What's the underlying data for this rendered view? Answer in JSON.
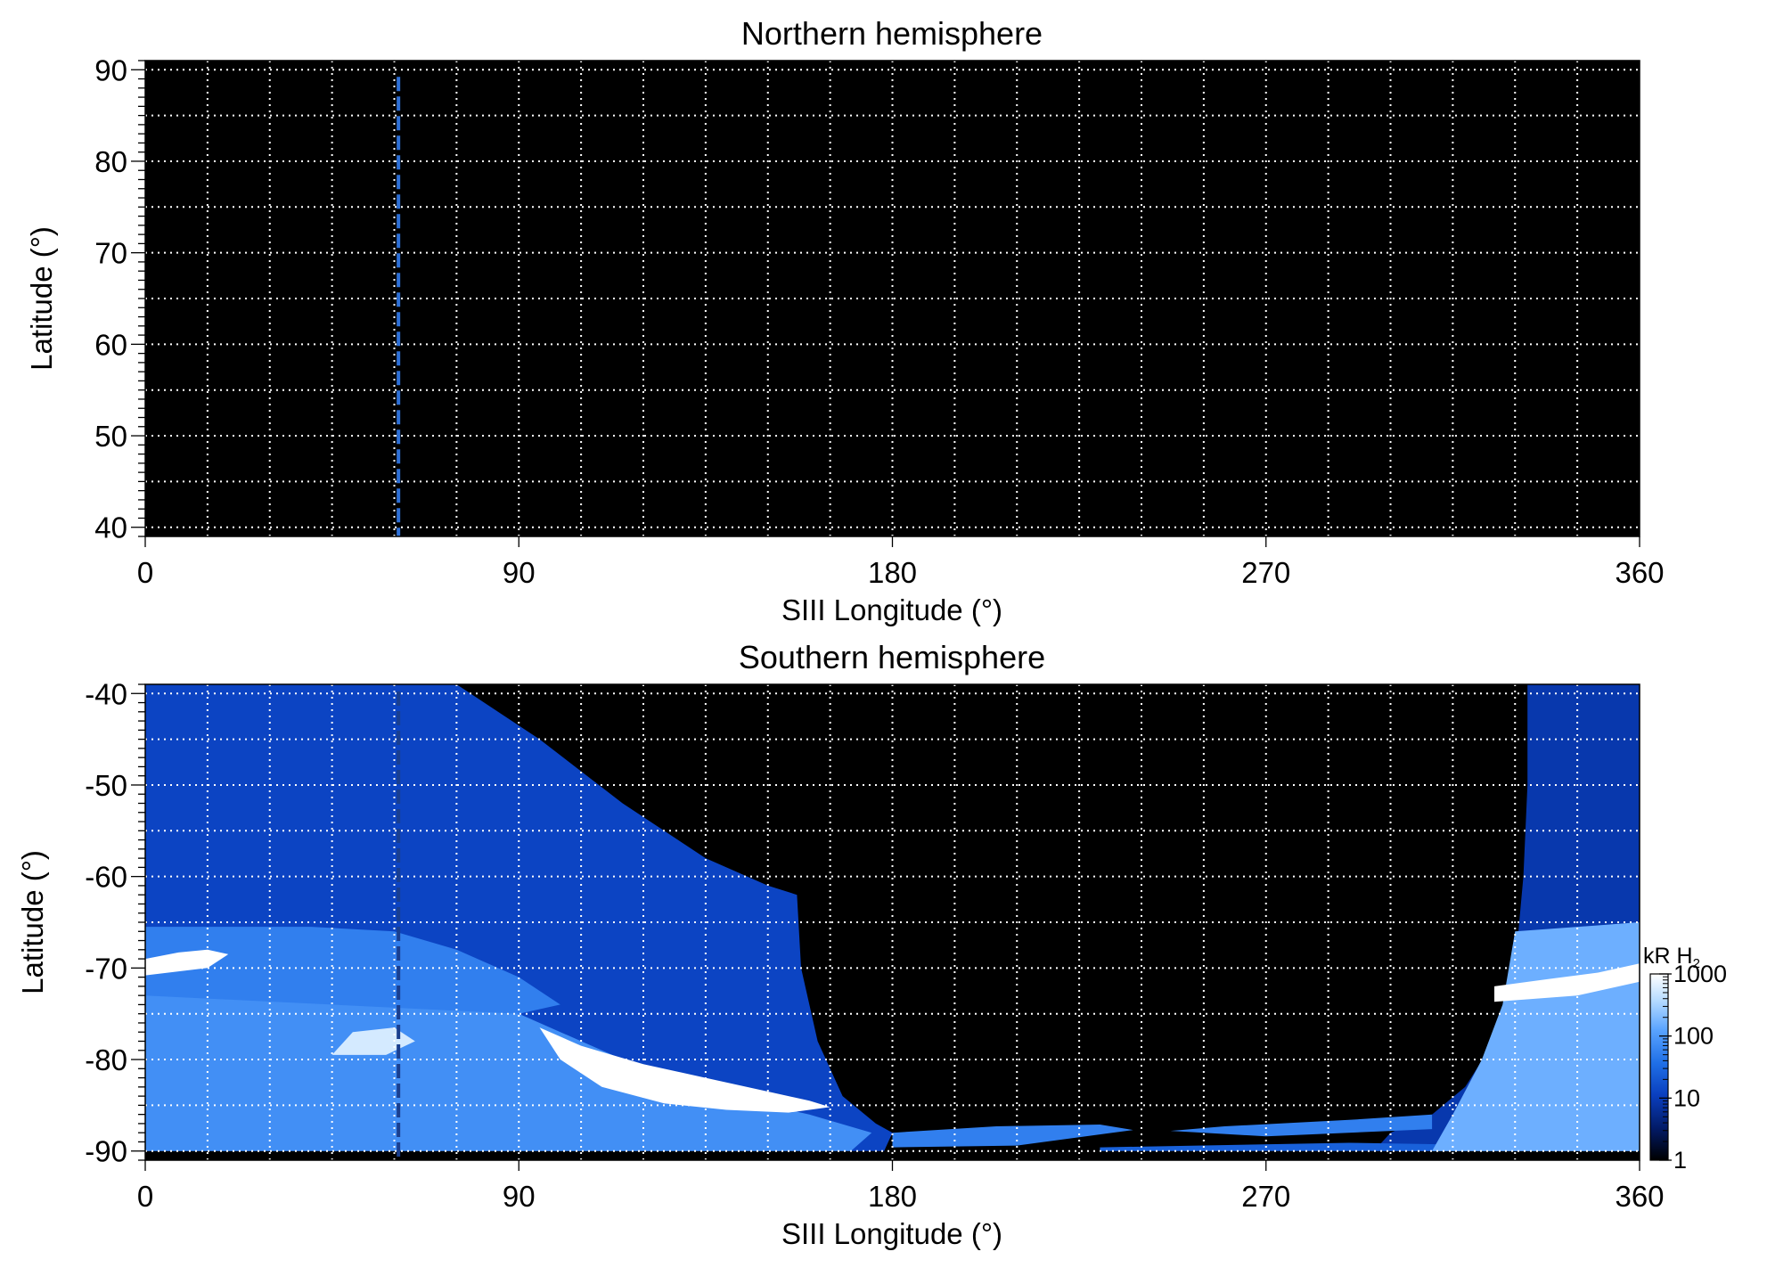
{
  "chart_data": [
    {
      "type": "heatmap",
      "title": "Northern hemisphere",
      "xlabel": "SIII Longitude (°)",
      "ylabel": "Latitude (°)",
      "xlim": [
        0,
        360
      ],
      "ylim": [
        39,
        91
      ],
      "xticks": [
        0,
        90,
        180,
        270,
        360
      ],
      "xtick_labels": [
        "0",
        "90",
        "180",
        "270",
        "360"
      ],
      "yticks": [
        40,
        50,
        60,
        70,
        80,
        90
      ],
      "ytick_labels": [
        "40",
        "50",
        "60",
        "70",
        "80",
        "90"
      ],
      "grid": true,
      "grid_x_step": 15,
      "grid_y_step": 5,
      "background_color": "#000000",
      "grid_color": "#ffffff",
      "marker_line": {
        "longitude": 61,
        "color": "#2d6fd6",
        "style": "dashed"
      },
      "emission": []
    },
    {
      "type": "heatmap",
      "title": "Southern hemisphere",
      "xlabel": "SIII Longitude (°)",
      "ylabel": "Latitude (°)",
      "xlim": [
        0,
        360
      ],
      "ylim": [
        -91,
        -39
      ],
      "xticks": [
        0,
        90,
        180,
        270,
        360
      ],
      "xtick_labels": [
        "0",
        "90",
        "180",
        "270",
        "360"
      ],
      "yticks": [
        -40,
        -50,
        -60,
        -70,
        -80,
        -90
      ],
      "ytick_labels": [
        "-40",
        "-50",
        "-60",
        "-70",
        "-80",
        "-90"
      ],
      "grid": true,
      "grid_x_step": 15,
      "grid_y_step": 5,
      "background_color": "#000000",
      "grid_color": "#ffffff",
      "marker_line": {
        "longitude": 61,
        "color": "#1a3f8f",
        "style": "dashed"
      },
      "emission": [
        {
          "region": "diffuse",
          "level": 0.35,
          "polygon": [
            [
              0,
              -39
            ],
            [
              75,
              -39
            ],
            [
              95,
              -45
            ],
            [
              115,
              -52
            ],
            [
              135,
              -58
            ],
            [
              150,
              -61
            ],
            [
              157,
              -62
            ],
            [
              158,
              -70
            ],
            [
              162,
              -78
            ],
            [
              168,
              -84
            ],
            [
              176,
              -87
            ],
            [
              180,
              -88
            ],
            [
              178,
              -90
            ],
            [
              0,
              -90
            ]
          ]
        },
        {
          "region": "diffuse",
          "level": 0.3,
          "polygon": [
            [
              333,
              -39
            ],
            [
              360,
              -39
            ],
            [
              360,
              -90
            ],
            [
              296,
              -90
            ],
            [
              300,
              -88
            ],
            [
              310,
              -86
            ],
            [
              318,
              -83
            ],
            [
              325,
              -78
            ],
            [
              330,
              -70
            ],
            [
              332,
              -60
            ],
            [
              333,
              -50
            ]
          ]
        },
        {
          "region": "floor",
          "level": 0.55,
          "polygon": [
            [
              180,
              -88
            ],
            [
              205,
              -87.3
            ],
            [
              230,
              -87.1
            ],
            [
              238,
              -87.7
            ],
            [
              210,
              -89.4
            ],
            [
              180,
              -89.6
            ]
          ]
        },
        {
          "region": "floor",
          "level": 0.55,
          "polygon": [
            [
              247,
              -87.8
            ],
            [
              260,
              -87.3
            ],
            [
              290,
              -86.6
            ],
            [
              310,
              -86
            ],
            [
              310,
              -87.6
            ],
            [
              270,
              -88.4
            ]
          ]
        },
        {
          "region": "floor",
          "level": 0.45,
          "polygon": [
            [
              230,
              -89.6
            ],
            [
              290,
              -89.1
            ],
            [
              330,
              -89.4
            ],
            [
              360,
              -89.6
            ],
            [
              360,
              -90
            ],
            [
              230,
              -90
            ]
          ]
        },
        {
          "region": "bright",
          "level": 0.6,
          "polygon": [
            [
              0,
              -71
            ],
            [
              60,
              -71
            ],
            [
              80,
              -73
            ],
            [
              100,
              -77
            ],
            [
              120,
              -81
            ],
            [
              140,
              -84
            ],
            [
              160,
              -86
            ],
            [
              175,
              -88
            ],
            [
              170,
              -90
            ],
            [
              0,
              -90
            ]
          ]
        },
        {
          "region": "bright",
          "level": 0.55,
          "polygon": [
            [
              0,
              -65.5
            ],
            [
              40,
              -65.5
            ],
            [
              60,
              -66
            ],
            [
              75,
              -68
            ],
            [
              90,
              -71
            ],
            [
              100,
              -74
            ],
            [
              90,
              -75
            ],
            [
              0,
              -73
            ]
          ]
        },
        {
          "region": "bright",
          "level": 0.7,
          "polygon": [
            [
              330,
              -66
            ],
            [
              360,
              -65
            ],
            [
              360,
              -90
            ],
            [
              310,
              -90
            ],
            [
              315,
              -86
            ],
            [
              322,
              -80
            ],
            [
              327,
              -74
            ]
          ]
        },
        {
          "region": "peak",
          "level": 1.0,
          "polygon": [
            [
              0,
              -69
            ],
            [
              8,
              -68.3
            ],
            [
              15,
              -68
            ],
            [
              20,
              -68.5
            ],
            [
              15,
              -70
            ],
            [
              0,
              -70.8
            ]
          ]
        },
        {
          "region": "peak",
          "level": 1.0,
          "polygon": [
            [
              95,
              -76.5
            ],
            [
              105,
              -78.5
            ],
            [
              120,
              -80.5
            ],
            [
              135,
              -82
            ],
            [
              150,
              -83.5
            ],
            [
              160,
              -84.5
            ],
            [
              165,
              -85.2
            ],
            [
              155,
              -85.8
            ],
            [
              140,
              -85.5
            ],
            [
              125,
              -84.8
            ],
            [
              110,
              -83
            ],
            [
              100,
              -80
            ]
          ]
        },
        {
          "region": "peak",
          "level": 0.9,
          "polygon": [
            [
              50,
              -77
            ],
            [
              60,
              -76.5
            ],
            [
              65,
              -78
            ],
            [
              58,
              -79.5
            ],
            [
              45,
              -79.5
            ]
          ]
        },
        {
          "region": "peak",
          "level": 1.0,
          "polygon": [
            [
              325,
              -72
            ],
            [
              338,
              -71.2
            ],
            [
              350,
              -70.5
            ],
            [
              360,
              -69.5
            ],
            [
              360,
              -71.5
            ],
            [
              345,
              -73
            ],
            [
              325,
              -73.7
            ]
          ]
        }
      ]
    }
  ],
  "colorbar": {
    "label": "kR H",
    "label_subscript": "2",
    "scale": "log",
    "ticks": [
      1,
      10,
      100,
      1000
    ],
    "tick_labels": [
      "1",
      "10",
      "100",
      "1000"
    ],
    "colors": [
      "#000000",
      "#021a66",
      "#0a3fbf",
      "#1f6fe6",
      "#5aa4ff",
      "#b7dcff",
      "#ffffff"
    ]
  }
}
